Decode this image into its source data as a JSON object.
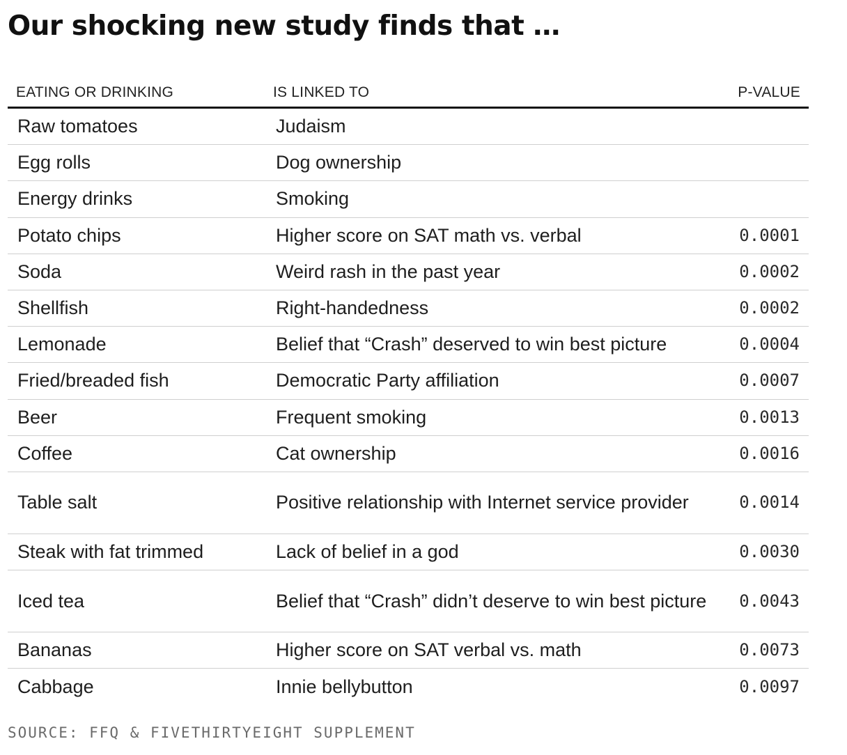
{
  "title": "Our shocking new study finds that …",
  "columns": {
    "food": "EATING OR DRINKING",
    "linked": "IS LINKED TO",
    "p": "P-VALUE"
  },
  "chart_data": {
    "type": "table",
    "headers": [
      "EATING OR DRINKING",
      "IS LINKED TO",
      "P-VALUE"
    ],
    "rows": [
      {
        "food": "Raw tomatoes",
        "linked": "Judaism",
        "p": ""
      },
      {
        "food": "Egg rolls",
        "linked": "Dog ownership",
        "p": ""
      },
      {
        "food": "Energy drinks",
        "linked": "Smoking",
        "p": ""
      },
      {
        "food": "Potato chips",
        "linked": "Higher score on SAT math vs. verbal",
        "p": "0.0001"
      },
      {
        "food": "Soda",
        "linked": "Weird rash in the past year",
        "p": "0.0002"
      },
      {
        "food": "Shellfish",
        "linked": "Right-handedness",
        "p": "0.0002"
      },
      {
        "food": "Lemonade",
        "linked": "Belief that “Crash” deserved to win best picture",
        "p": "0.0004"
      },
      {
        "food": "Fried/breaded fish",
        "linked": "Democratic Party affiliation",
        "p": "0.0007"
      },
      {
        "food": "Beer",
        "linked": "Frequent smoking",
        "p": "0.0013"
      },
      {
        "food": "Coffee",
        "linked": "Cat ownership",
        "p": "0.0016"
      },
      {
        "food": "Table salt",
        "linked": "Positive relationship with Internet service provider",
        "p": "0.0014"
      },
      {
        "food": "Steak with fat trimmed",
        "linked": "Lack of belief in a god",
        "p": "0.0030"
      },
      {
        "food": "Iced tea",
        "linked": "Belief that “Crash” didn’t deserve to win best picture",
        "p": "0.0043"
      },
      {
        "food": "Bananas",
        "linked": "Higher score on SAT verbal vs. math",
        "p": "0.0073"
      },
      {
        "food": "Cabbage",
        "linked": "Innie bellybutton",
        "p": "0.0097"
      }
    ]
  },
  "source": "SOURCE: FFQ & FIVETHIRTYEIGHT SUPPLEMENT"
}
